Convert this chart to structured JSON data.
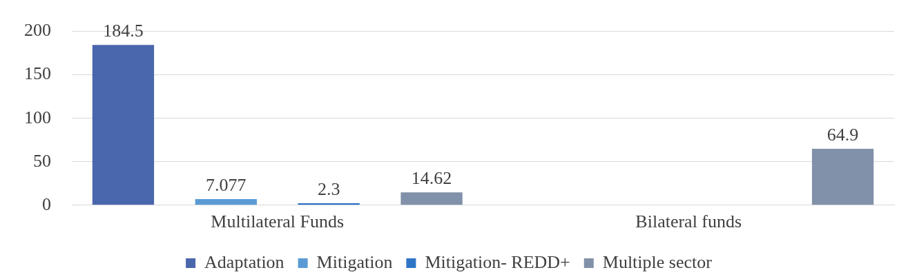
{
  "chart_data": {
    "type": "bar",
    "categories": [
      "Multilateral Funds",
      "Bilateral funds"
    ],
    "series": [
      {
        "name": "Adaptation",
        "color": "#4a66ac",
        "values": [
          184.5,
          null
        ]
      },
      {
        "name": "Mitigation",
        "color": "#5b9bd5",
        "values": [
          7.077,
          null
        ]
      },
      {
        "name": "Mitigation- REDD+",
        "color": "#2e75c6",
        "values": [
          2.3,
          null
        ]
      },
      {
        "name": "Multiple sector",
        "color": "#8191a9",
        "values": [
          14.62,
          64.9
        ]
      }
    ],
    "ylim": [
      0,
      200
    ],
    "yticks": [
      0,
      50,
      100,
      150,
      200
    ],
    "grid": "y",
    "legend": "bottom",
    "data_labels": true
  }
}
